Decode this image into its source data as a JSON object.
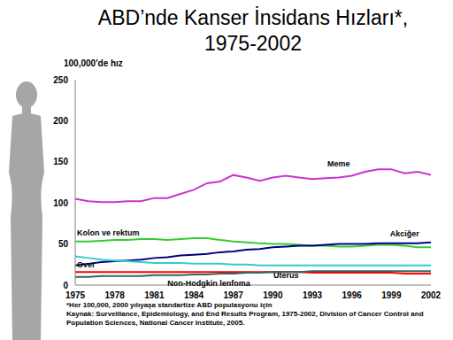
{
  "chart_data": {
    "type": "line",
    "title": "ABD’nde Kanser İnsidans Hızları*, 1975-2002",
    "y_label": "100,000'de hız",
    "x": [
      1975,
      1976,
      1977,
      1978,
      1979,
      1980,
      1981,
      1982,
      1983,
      1984,
      1985,
      1986,
      1987,
      1988,
      1989,
      1990,
      1991,
      1992,
      1993,
      1994,
      1995,
      1996,
      1997,
      1998,
      1999,
      2000,
      2001,
      2002
    ],
    "xlim": [
      1975,
      2002
    ],
    "xticks": [
      1975,
      1978,
      1981,
      1984,
      1987,
      1990,
      1993,
      1996,
      1999,
      2002
    ],
    "ylim": [
      0,
      250
    ],
    "yticks": [
      0,
      50,
      100,
      150,
      200,
      250
    ],
    "grid": false,
    "series": [
      {
        "name": "Meme",
        "color": "#cc33cc",
        "values": [
          105,
          102,
          101,
          101,
          102,
          102,
          106,
          106,
          111,
          116,
          124,
          126,
          134,
          131,
          127,
          131,
          133,
          131,
          129,
          130,
          131,
          133,
          138,
          141,
          141,
          136,
          138,
          134
        ]
      },
      {
        "name": "Kolon ve rektum",
        "color": "#33cc33",
        "values": [
          53,
          53,
          54,
          55,
          55,
          56,
          56,
          55,
          56,
          57,
          57,
          55,
          53,
          52,
          51,
          50,
          50,
          49,
          48,
          48,
          47,
          47,
          48,
          49,
          49,
          48,
          46,
          46
        ]
      },
      {
        "name": "Akciğer",
        "color": "#000080",
        "values": [
          24,
          26,
          28,
          29,
          30,
          31,
          33,
          34,
          36,
          37,
          38,
          40,
          41,
          43,
          44,
          46,
          47,
          48,
          48,
          49,
          50,
          50,
          50,
          51,
          51,
          51,
          51,
          52
        ]
      },
      {
        "name": "Uterus",
        "color": "#33cccc",
        "values": [
          35,
          33,
          31,
          30,
          29,
          28,
          27,
          27,
          27,
          26,
          26,
          26,
          25,
          25,
          24,
          24,
          24,
          24,
          24,
          24,
          24,
          24,
          24,
          24,
          24,
          24,
          24,
          24
        ]
      },
      {
        "name": "Over",
        "color": "#ff0000",
        "values": [
          16,
          16,
          16,
          16,
          16,
          16,
          16,
          16,
          16,
          16,
          16,
          16,
          16,
          16,
          16,
          16,
          16,
          16,
          15,
          15,
          15,
          15,
          15,
          15,
          15,
          14,
          14,
          14
        ]
      },
      {
        "name": "Non-Hodgkin lenfoma",
        "color": "#336666",
        "values": [
          10,
          10,
          11,
          11,
          11,
          11,
          12,
          12,
          12,
          13,
          13,
          14,
          14,
          15,
          15,
          16,
          16,
          16,
          17,
          17,
          17,
          17,
          17,
          17,
          17,
          17,
          17,
          17
        ]
      }
    ],
    "footnotes": [
      "*Her 100,000, 2000 yılıyaşa standartize ABD populasyonu için",
      "Kaynak: Surveillance, Epidemiology, and End Results Program, 1975-2002, Division of Cancer Control and Population Sciences, National Cancer Institute, 2005."
    ]
  }
}
